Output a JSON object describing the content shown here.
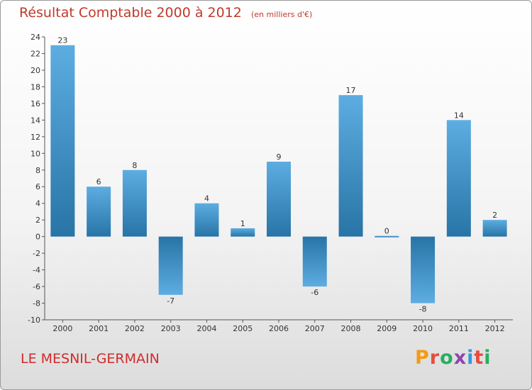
{
  "header": {
    "title": "Résultat Comptable 2000 à 2012",
    "subtitle": "(en milliers d'€)"
  },
  "footer": {
    "commune": "LE MESNIL-GERMAIN",
    "brand": "Proxiti"
  },
  "colors": {
    "bar_light": "#5dade2",
    "bar_dark": "#2e86c1",
    "title": "#c0392b",
    "brand_letters": [
      "#f39c12",
      "#e74c3c",
      "#27ae60",
      "#8e44ad",
      "#3498db",
      "#e74c3c",
      "#27ae60"
    ]
  },
  "chart_data": {
    "type": "bar",
    "categories": [
      "2000",
      "2001",
      "2002",
      "2003",
      "2004",
      "2005",
      "2006",
      "2007",
      "2008",
      "2009",
      "2010",
      "2011",
      "2012"
    ],
    "values": [
      23,
      6,
      8,
      -7,
      4,
      1,
      9,
      -6,
      17,
      0,
      -8,
      14,
      2
    ],
    "title": "Résultat Comptable 2000 à 2012",
    "xlabel": "",
    "ylabel": "",
    "ylim": [
      -10,
      24
    ],
    "yticks": [
      -10,
      -8,
      -6,
      -4,
      -2,
      0,
      2,
      4,
      6,
      8,
      10,
      12,
      14,
      16,
      18,
      20,
      22,
      24
    ],
    "grid": false,
    "legend": "none"
  }
}
